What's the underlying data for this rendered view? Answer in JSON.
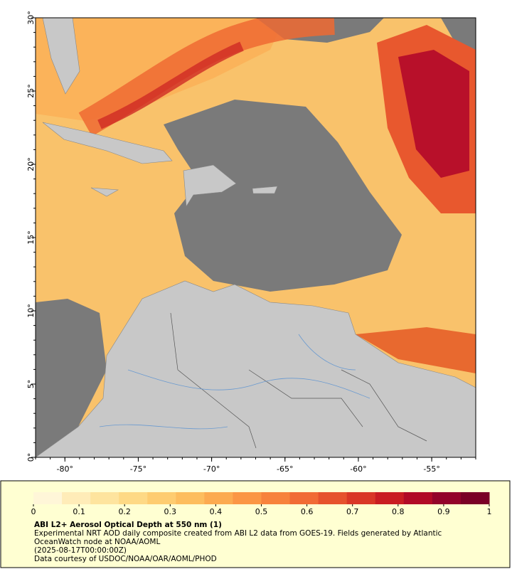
{
  "chart_data": {
    "type": "map",
    "xlim": [
      -82,
      -52
    ],
    "ylim": [
      0,
      30
    ],
    "xticks": [
      {
        "value": -80,
        "label": "-80°"
      },
      {
        "value": -75,
        "label": "-75°"
      },
      {
        "value": -70,
        "label": "-70°"
      },
      {
        "value": -65,
        "label": "-65°"
      },
      {
        "value": -60,
        "label": "-60°"
      },
      {
        "value": -55,
        "label": "-55°"
      }
    ],
    "yticks": [
      {
        "value": 0,
        "label": "0°"
      },
      {
        "value": 5,
        "label": "5°"
      },
      {
        "value": 10,
        "label": "10°"
      },
      {
        "value": 15,
        "label": "15°"
      },
      {
        "value": 20,
        "label": "20°"
      },
      {
        "value": 25,
        "label": "25°"
      },
      {
        "value": 30,
        "label": "30°"
      }
    ],
    "colorbar": {
      "lim": [
        0,
        1
      ],
      "ticks": [
        0,
        0.1,
        0.2,
        0.3,
        0.4,
        0.5,
        0.6,
        0.7,
        0.8,
        0.9,
        1
      ],
      "colors": [
        "#fff6d8",
        "#ffecb8",
        "#fee49e",
        "#fed985",
        "#fecc70",
        "#fdbd5e",
        "#fcaa50",
        "#fb9645",
        "#f7823c",
        "#f16b35",
        "#e6522d",
        "#d93726",
        "#c91d22",
        "#b10a26",
        "#93032a",
        "#7a0026"
      ]
    },
    "title": "ABI L2+ Aerosol Optical Depth at 550 nm (1)",
    "description": "Experimental NRT AOD daily composite created from ABI L2 data from GOES-19. Fields generated by Atlantic OceanWatch node at NOAA/AOML",
    "date": "(2025-08-17T00:00:00Z)",
    "credit": "Data courtesy of USDOC/NOAA/OAR/AOML/PHOD"
  }
}
